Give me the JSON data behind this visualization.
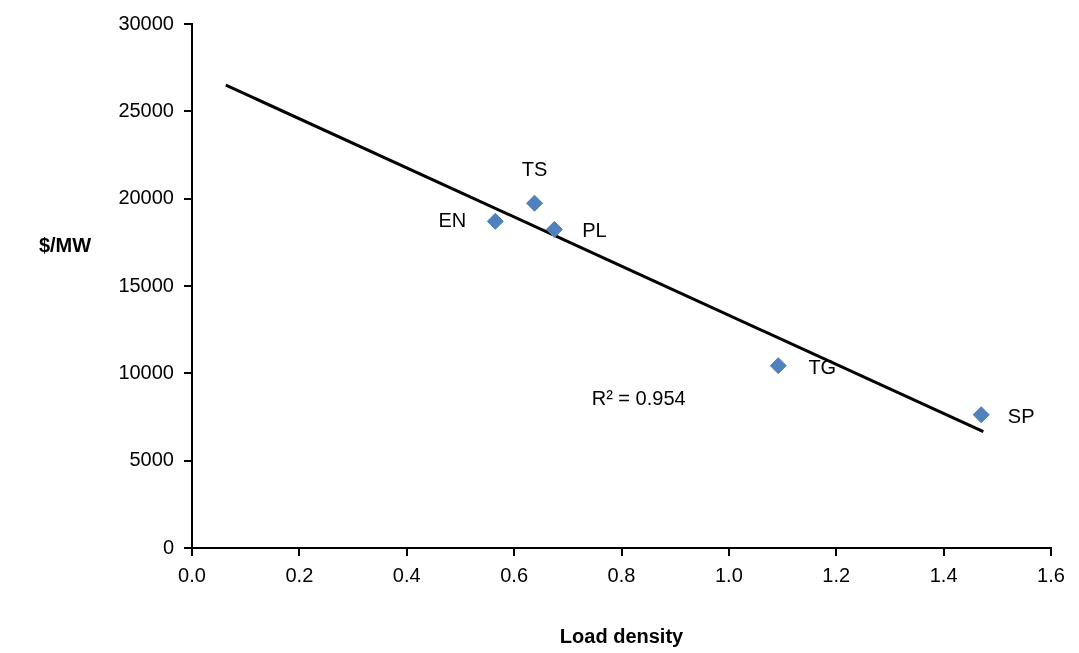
{
  "chart_data": {
    "type": "scatter",
    "xlabel": "Load density",
    "ylabel": "$/MW",
    "xlim": [
      0,
      1.6
    ],
    "xticks": [
      {
        "value": 0,
        "label": "0.0"
      },
      {
        "value": 0.2,
        "label": "0.2"
      },
      {
        "value": 0.4,
        "label": "0.4"
      },
      {
        "value": 0.6,
        "label": "0.6"
      },
      {
        "value": 0.8,
        "label": "0.8"
      },
      {
        "value": 1,
        "label": "1.0"
      },
      {
        "value": 1.2,
        "label": "1.2"
      },
      {
        "value": 1.4,
        "label": "1.4"
      },
      {
        "value": 1.6,
        "label": "1.6"
      }
    ],
    "ylim": [
      0,
      30000
    ],
    "yticks": [
      0,
      5000,
      10000,
      15000,
      20000,
      25000,
      30000
    ],
    "grid": false,
    "legend": false,
    "marker": "diamond",
    "series": [
      {
        "color": "#4f81bd",
        "x": [
          0.565,
          0.638,
          0.675,
          1.092,
          1.47
        ],
        "values": [
          18700,
          19740,
          18240,
          10440,
          7630
        ]
      },
      {
        "type": "line",
        "color": "#000000",
        "marker": "none",
        "x": [
          0.063,
          1.474
        ],
        "values": [
          26500,
          6660
        ]
      }
    ],
    "annotations": [
      {
        "text": "EN",
        "x": 0.565,
        "y": 18700
      },
      {
        "text": "TS",
        "x": 0.638,
        "y": 19740
      },
      {
        "text": "PL",
        "x": 0.675,
        "y": 18240
      },
      {
        "text": "TG",
        "x": 1.092,
        "y": 10440
      },
      {
        "text": "SP",
        "x": 1.47,
        "y": 7630
      },
      "R² = 0.954"
    ]
  }
}
